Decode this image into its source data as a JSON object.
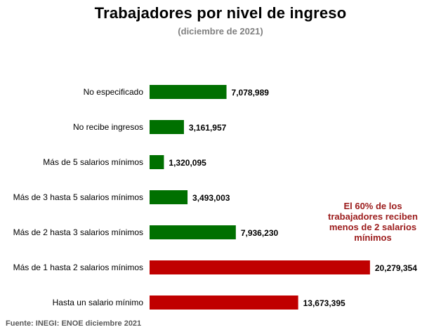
{
  "chart_data": {
    "type": "bar",
    "orientation": "horizontal",
    "title": "Trabajadores por nivel de ingreso",
    "subtitle": "(diciembre de 2021)",
    "categories": [
      "No especificado",
      "No recibe ingresos",
      "Más de 5 salarios mínimos",
      "Más de 3 hasta 5 salarios mínimos",
      "Más de 2 hasta 3 salarios mínimos",
      "Más de 1 hasta 2 salarios mínimos",
      "Hasta un salario mínimo"
    ],
    "values": [
      7078989,
      3161957,
      1320095,
      3493003,
      7936230,
      20279354,
      13673395
    ],
    "value_labels": [
      "7,078,989",
      "3,161,957",
      "1,320,095",
      "3,493,003",
      "7,936,230",
      "20,279,354",
      "13,673,395"
    ],
    "bar_colors": [
      "#007000",
      "#007000",
      "#007000",
      "#007000",
      "#007000",
      "#C00000",
      "#C00000"
    ],
    "xlim": [
      0,
      21000000
    ],
    "grid": false,
    "legend": "none",
    "annotation": "El 60% de los trabajadores reciben menos de 2 salarios mínimos",
    "annotation_color": "#9B1B1B",
    "source": "Fuente: INEGI: ENOE diciembre 2021"
  }
}
